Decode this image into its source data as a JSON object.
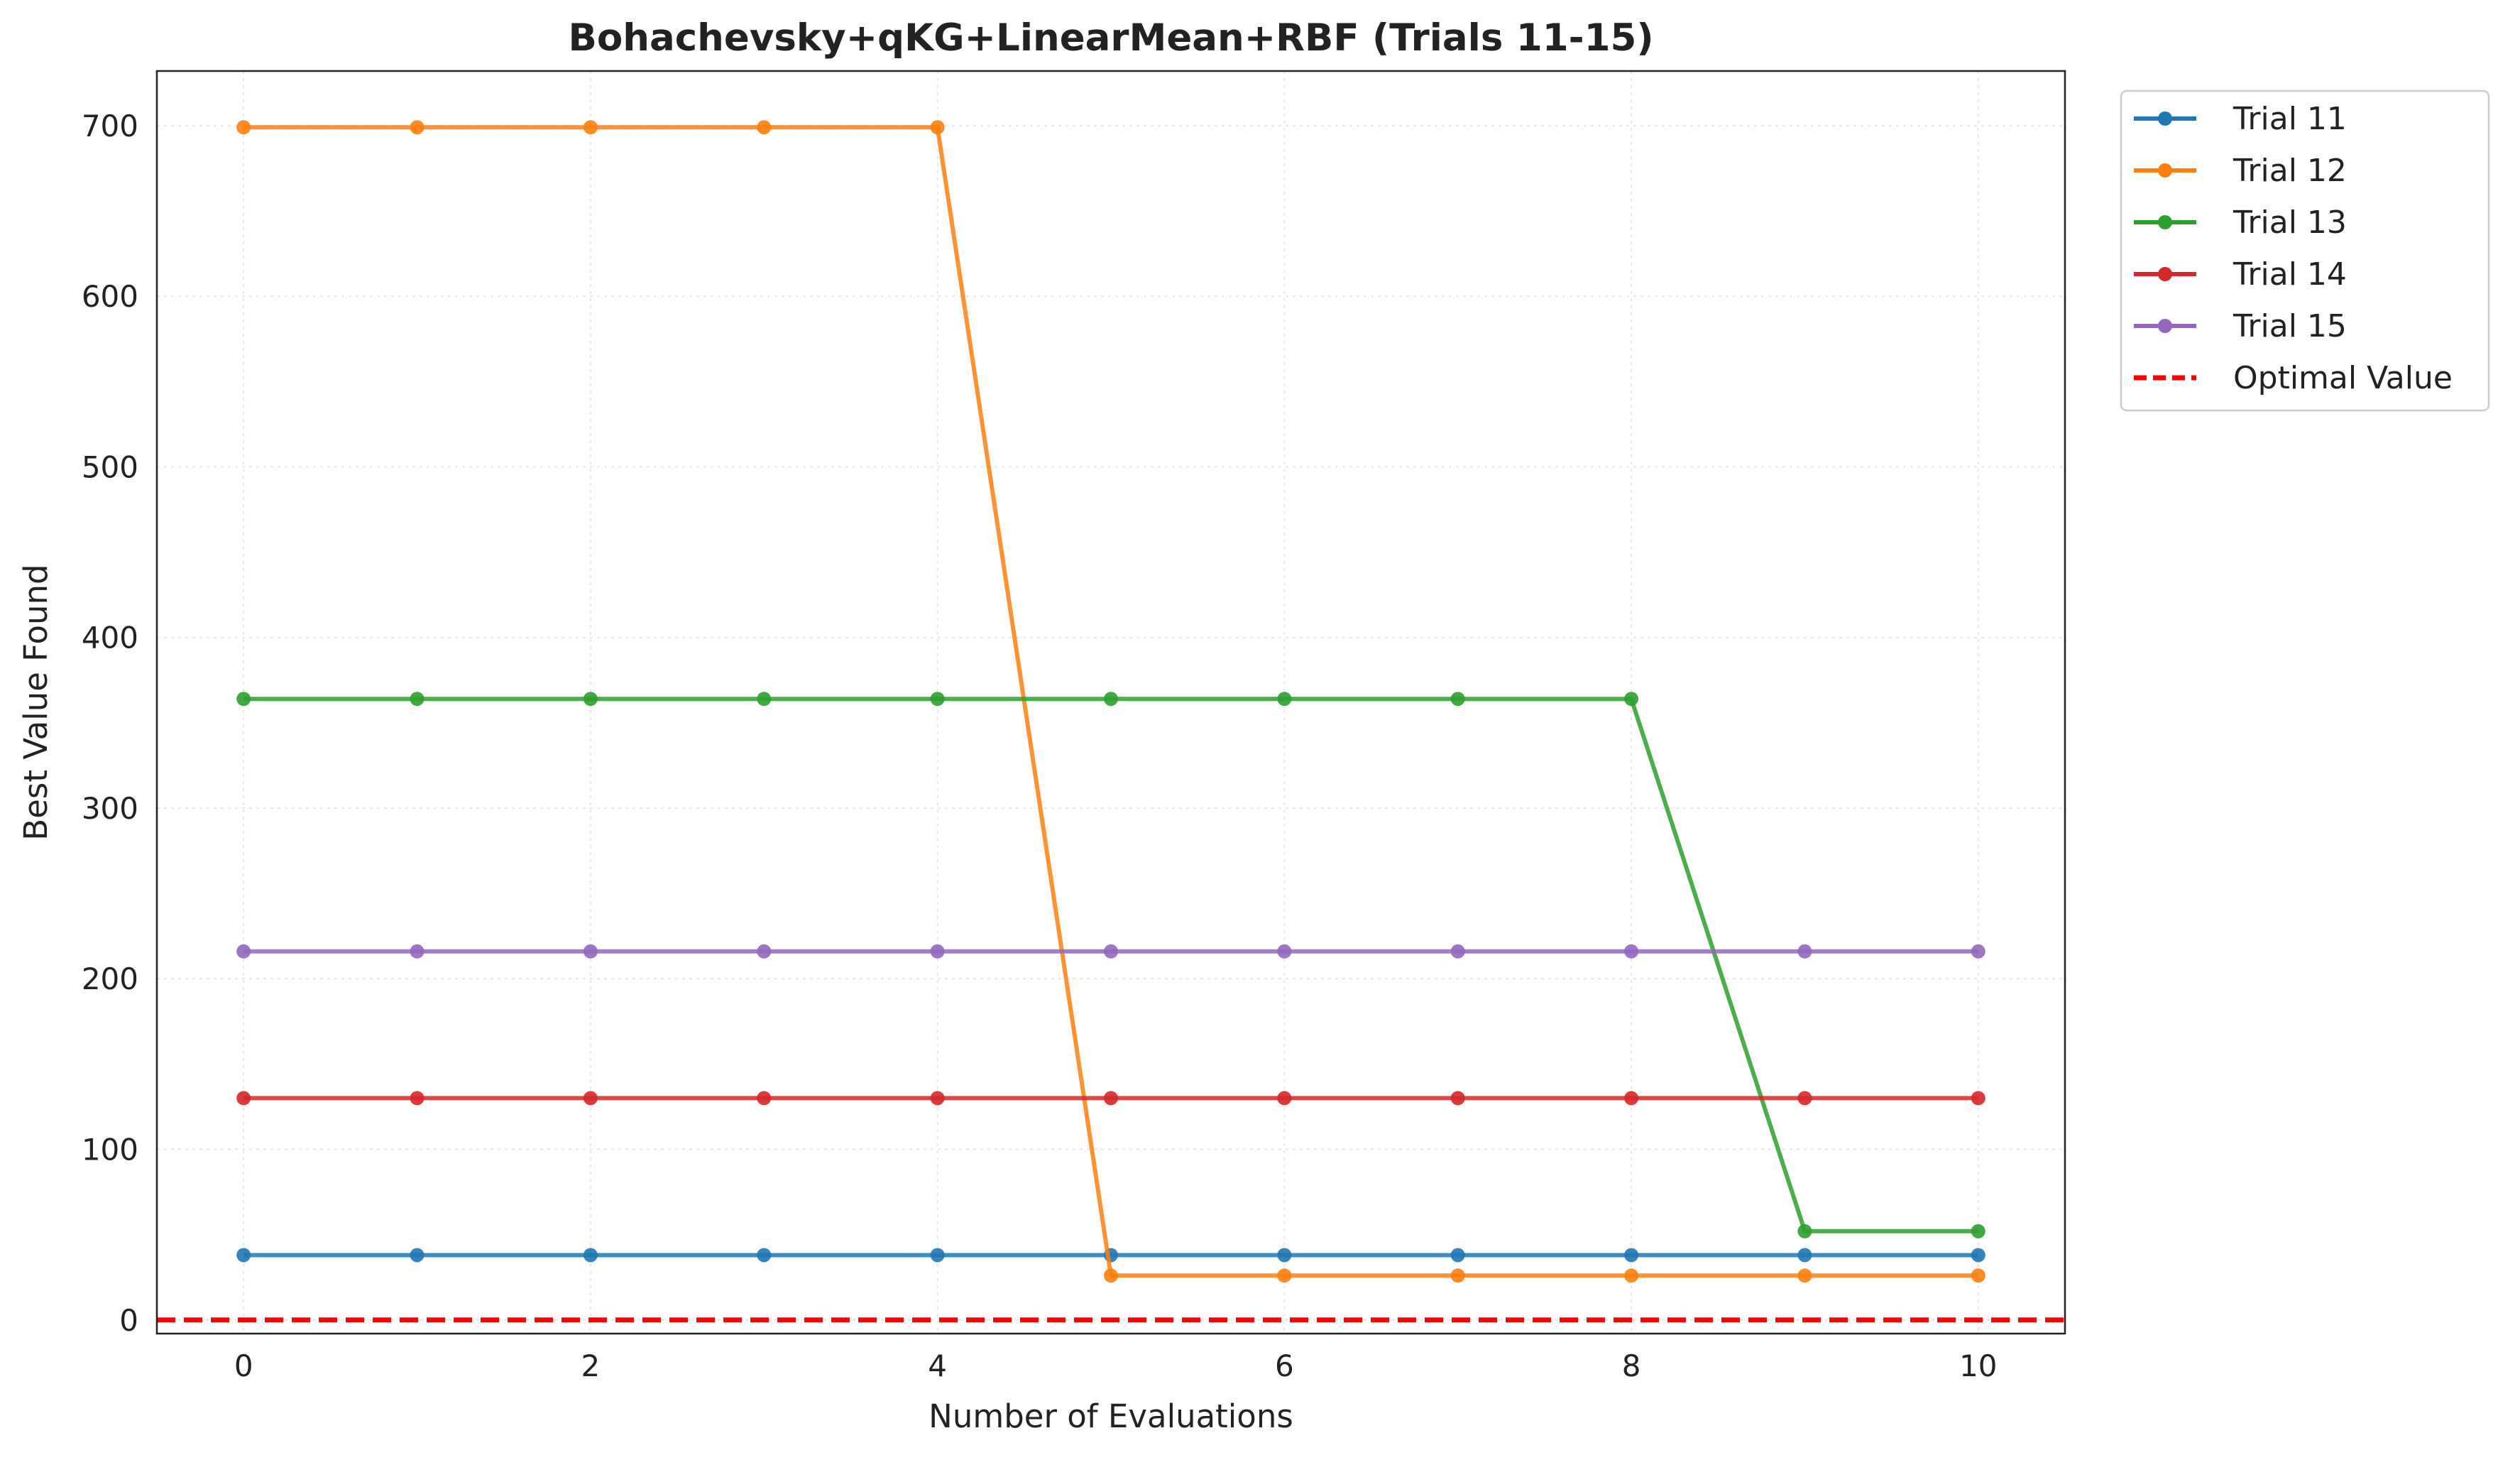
{
  "chart_data": {
    "type": "line",
    "title": "Bohachevsky+qKG+LinearMean+RBF (Trials 11-15)",
    "xlabel": "Number of Evaluations",
    "ylabel": "Best Value Found",
    "xlim": [
      -0.5,
      10.5
    ],
    "ylim": [
      -8,
      732
    ],
    "xticks": [
      0,
      2,
      4,
      6,
      8,
      10
    ],
    "yticks": [
      0,
      100,
      200,
      300,
      400,
      500,
      600,
      700
    ],
    "grid": true,
    "legend_position": "outside-top-right",
    "x": [
      0,
      1,
      2,
      3,
      4,
      5,
      6,
      7,
      8,
      9,
      10
    ],
    "series": [
      {
        "name": "Trial 11",
        "color": "#1f77b4",
        "values": [
          38,
          38,
          38,
          38,
          38,
          38,
          38,
          38,
          38,
          38,
          38
        ]
      },
      {
        "name": "Trial 12",
        "color": "#ff7f0e",
        "values": [
          699,
          699,
          699,
          699,
          699,
          26,
          26,
          26,
          26,
          26,
          26
        ]
      },
      {
        "name": "Trial 13",
        "color": "#2ca02c",
        "values": [
          364,
          364,
          364,
          364,
          364,
          364,
          364,
          364,
          364,
          52,
          52
        ]
      },
      {
        "name": "Trial 14",
        "color": "#d62728",
        "values": [
          130,
          130,
          130,
          130,
          130,
          130,
          130,
          130,
          130,
          130,
          130
        ]
      },
      {
        "name": "Trial 15",
        "color": "#9467bd",
        "values": [
          216,
          216,
          216,
          216,
          216,
          216,
          216,
          216,
          216,
          216,
          216
        ]
      }
    ],
    "reference_line": {
      "name": "Optimal Value",
      "value": 0,
      "color": "#ff0000",
      "style": "dashed"
    }
  }
}
